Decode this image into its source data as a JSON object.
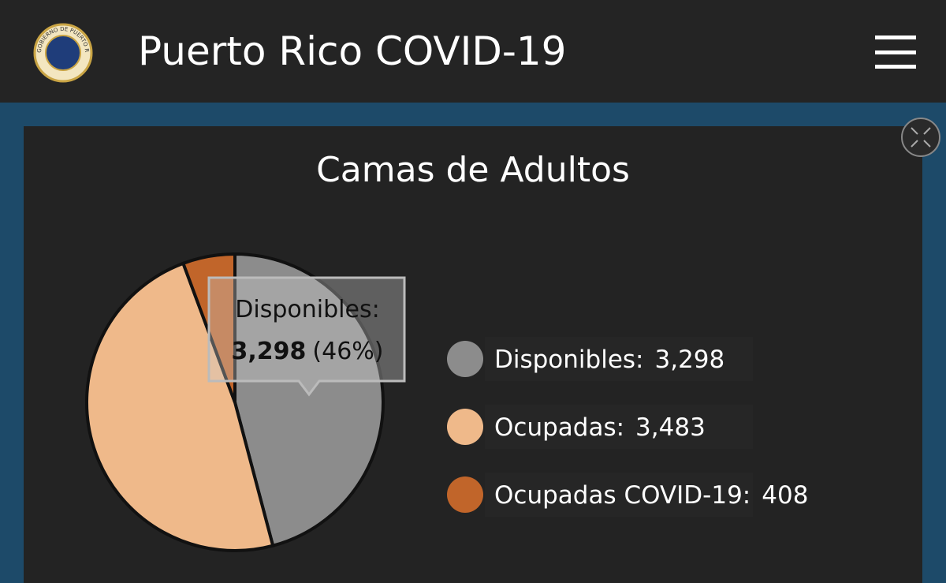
{
  "header": {
    "title": "Puerto Rico COVID-19",
    "seal_text": "GOBIERNO DE PUERTO RICO"
  },
  "chart_data": {
    "type": "pie",
    "title": "Camas de Adultos",
    "categories": [
      "Disponibles",
      "Ocupadas",
      "Ocupadas COVID-19"
    ],
    "legend_labels": [
      "Disponibles:",
      "Ocupadas:",
      "Ocupadas COVID-19:"
    ],
    "values": [
      3298,
      3483,
      408
    ],
    "value_labels": [
      "3,298",
      "3,483",
      "408"
    ],
    "colors": [
      "#8c8c8c",
      "#efb98a",
      "#c1652a"
    ],
    "tooltip": {
      "title": "Disponibles:",
      "value": "3,298",
      "percent": "(46%)"
    }
  }
}
